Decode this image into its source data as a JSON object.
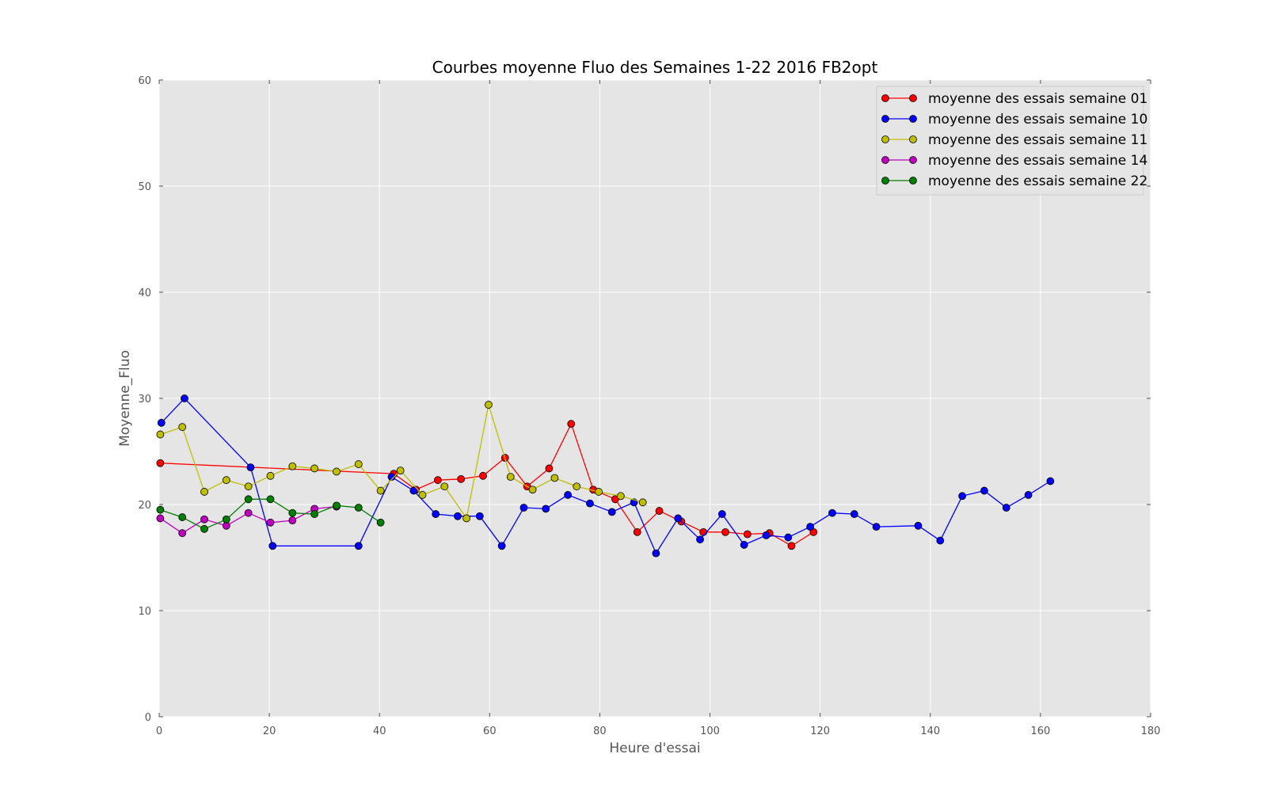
{
  "chart_data": {
    "type": "line",
    "title": "Courbes moyenne Fluo des Semaines 1-22 2016 FB2opt",
    "xlabel": "Heure d'essai",
    "ylabel": "Moyenne_Fluo",
    "xlim": [
      0,
      180
    ],
    "ylim": [
      0,
      60
    ],
    "xticks": [
      "0",
      "20",
      "40",
      "60",
      "80",
      "100",
      "120",
      "140",
      "160",
      "180"
    ],
    "yticks": [
      "0",
      "10",
      "20",
      "30",
      "40",
      "50",
      "60"
    ],
    "grid": true,
    "legend_position": "top-right",
    "series": [
      {
        "name": "moyenne des essais semaine 01",
        "color": "#ff0000",
        "x": [
          0.2,
          42.6,
          46.6,
          50.6,
          54.8,
          58.8,
          62.8,
          66.8,
          70.8,
          74.8,
          78.8,
          82.8,
          86.8,
          90.8,
          94.8,
          98.8,
          102.8,
          106.8,
          110.8,
          114.8,
          118.8
        ],
        "y": [
          23.9,
          22.9,
          21.4,
          22.3,
          22.4,
          22.7,
          24.4,
          21.7,
          23.4,
          27.6,
          21.4,
          20.5,
          17.4,
          19.4,
          18.4,
          17.4,
          17.4,
          17.2,
          17.3,
          16.1,
          17.4
        ]
      },
      {
        "name": "moyenne des essais semaine 10",
        "color": "#0000ff",
        "x": [
          0.4,
          4.6,
          16.6,
          20.6,
          36.2,
          42.2,
          46.2,
          50.2,
          54.2,
          58.2,
          62.2,
          66.2,
          70.2,
          74.2,
          78.2,
          82.2,
          86.2,
          90.2,
          94.2,
          98.2,
          102.2,
          106.2,
          110.2,
          114.2,
          118.2,
          122.2,
          126.2,
          130.2,
          137.8,
          141.8,
          145.8,
          149.8,
          153.8,
          157.8,
          161.8
        ],
        "y": [
          27.7,
          30.0,
          23.5,
          16.1,
          16.1,
          22.6,
          21.3,
          19.1,
          18.9,
          18.9,
          16.1,
          19.7,
          19.6,
          20.9,
          20.1,
          19.3,
          20.2,
          15.4,
          18.7,
          16.7,
          19.1,
          16.2,
          17.1,
          16.9,
          17.9,
          19.2,
          19.1,
          17.9,
          18.0,
          16.6,
          20.8,
          21.3,
          19.7,
          20.9,
          22.2
        ]
      },
      {
        "name": "moyenne des essais semaine 11",
        "color": "#bfbf00",
        "x": [
          0.2,
          4.2,
          8.2,
          12.2,
          16.2,
          20.2,
          24.2,
          28.2,
          32.2,
          36.2,
          40.2,
          43.8,
          47.8,
          51.8,
          55.8,
          59.8,
          63.8,
          67.8,
          71.8,
          75.8,
          79.8,
          83.8,
          87.8
        ],
        "y": [
          26.6,
          27.3,
          21.2,
          22.3,
          21.7,
          22.7,
          23.6,
          23.4,
          23.1,
          23.8,
          21.3,
          23.2,
          20.9,
          21.7,
          18.7,
          29.4,
          22.6,
          21.4,
          22.5,
          21.7,
          21.2,
          20.8,
          20.2
        ]
      },
      {
        "name": "moyenne des essais semaine 14",
        "color": "#bf00bf",
        "x": [
          0.2,
          4.2,
          8.2,
          12.2,
          16.2,
          20.2,
          24.2,
          28.2,
          32.2
        ],
        "y": [
          18.7,
          17.3,
          18.6,
          18.0,
          19.2,
          18.3,
          18.5,
          19.6,
          19.8
        ]
      },
      {
        "name": "moyenne des essais semaine 22",
        "color": "#008000",
        "x": [
          0.2,
          4.2,
          8.2,
          12.2,
          16.2,
          20.2,
          24.2,
          28.2,
          32.2,
          36.2,
          40.2
        ],
        "y": [
          19.5,
          18.8,
          17.7,
          18.6,
          20.5,
          20.5,
          19.2,
          19.1,
          19.9,
          19.7,
          18.3
        ]
      }
    ]
  }
}
